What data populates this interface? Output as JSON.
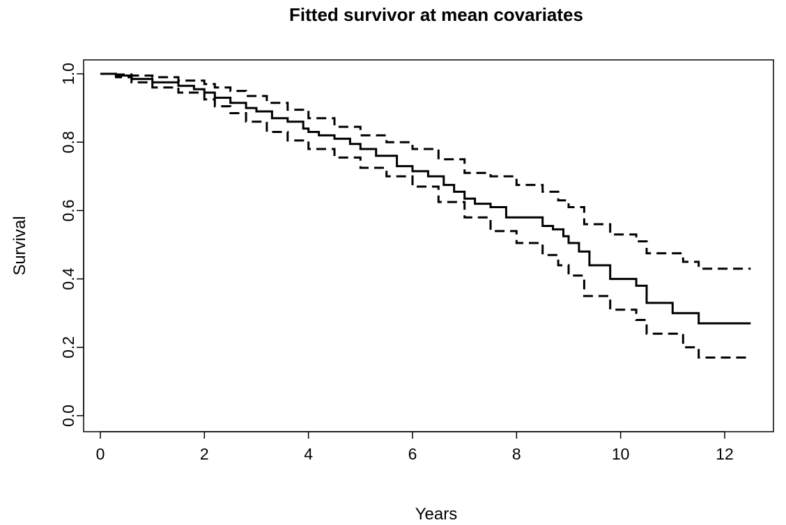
{
  "chart_data": {
    "type": "line",
    "title": "Fitted survivor at mean covariates",
    "xlabel": "Years",
    "ylabel": "Survival",
    "xlim": [
      0,
      12.5
    ],
    "ylim": [
      0,
      1
    ],
    "x_ticks": [
      0,
      2,
      4,
      6,
      8,
      10,
      12
    ],
    "y_ticks": [
      0.0,
      0.2,
      0.4,
      0.6,
      0.8,
      1.0
    ],
    "x_tick_labels": [
      "0",
      "2",
      "4",
      "6",
      "8",
      "10",
      "12"
    ],
    "y_tick_labels": [
      "0.0",
      "0.2",
      "0.4",
      "0.6",
      "0.8",
      "1.0"
    ],
    "grid": false,
    "legend": "none",
    "line_color": "#000000",
    "series": [
      {
        "style": "solid",
        "x": [
          0,
          0.3,
          0.6,
          1.0,
          1.5,
          1.8,
          2.0,
          2.2,
          2.5,
          2.8,
          3.0,
          3.3,
          3.6,
          3.9,
          4.0,
          4.2,
          4.5,
          4.8,
          5.0,
          5.3,
          5.7,
          6.0,
          6.3,
          6.6,
          6.8,
          7.0,
          7.2,
          7.5,
          7.8,
          8.5,
          8.7,
          8.9,
          9.0,
          9.2,
          9.4,
          9.8,
          10.3,
          10.5,
          11.0,
          11.5,
          12.5
        ],
        "y": [
          1.0,
          0.995,
          0.985,
          0.975,
          0.965,
          0.955,
          0.945,
          0.93,
          0.915,
          0.9,
          0.89,
          0.87,
          0.86,
          0.84,
          0.83,
          0.82,
          0.81,
          0.795,
          0.78,
          0.76,
          0.73,
          0.715,
          0.7,
          0.675,
          0.655,
          0.635,
          0.62,
          0.61,
          0.58,
          0.555,
          0.545,
          0.525,
          0.505,
          0.48,
          0.44,
          0.4,
          0.38,
          0.33,
          0.3,
          0.27,
          0.27
        ]
      },
      {
        "style": "dashed",
        "x": [
          0,
          0.3,
          0.6,
          1.0,
          1.5,
          2.0,
          2.2,
          2.5,
          2.8,
          3.2,
          3.6,
          4.0,
          4.5,
          5.0,
          5.5,
          6.0,
          6.5,
          7.0,
          7.5,
          8.0,
          8.5,
          8.8,
          9.0,
          9.3,
          9.8,
          10.3,
          10.5,
          11.2,
          11.5,
          12.5
        ],
        "y": [
          1.0,
          0.998,
          0.995,
          0.99,
          0.98,
          0.97,
          0.96,
          0.95,
          0.935,
          0.915,
          0.895,
          0.87,
          0.845,
          0.82,
          0.8,
          0.78,
          0.75,
          0.71,
          0.7,
          0.675,
          0.655,
          0.63,
          0.61,
          0.56,
          0.53,
          0.51,
          0.475,
          0.45,
          0.43,
          0.43
        ]
      },
      {
        "style": "dashed",
        "x": [
          0,
          0.3,
          0.6,
          1.0,
          1.5,
          2.0,
          2.2,
          2.5,
          2.8,
          3.2,
          3.6,
          4.0,
          4.5,
          5.0,
          5.5,
          6.0,
          6.5,
          7.0,
          7.5,
          8.0,
          8.5,
          8.8,
          9.0,
          9.3,
          9.8,
          10.3,
          10.5,
          11.2,
          11.5,
          12.5
        ],
        "y": [
          1.0,
          0.99,
          0.975,
          0.96,
          0.945,
          0.925,
          0.905,
          0.885,
          0.86,
          0.83,
          0.805,
          0.78,
          0.755,
          0.725,
          0.7,
          0.67,
          0.625,
          0.58,
          0.54,
          0.505,
          0.47,
          0.44,
          0.41,
          0.35,
          0.31,
          0.28,
          0.24,
          0.2,
          0.17,
          0.17
        ]
      }
    ]
  }
}
